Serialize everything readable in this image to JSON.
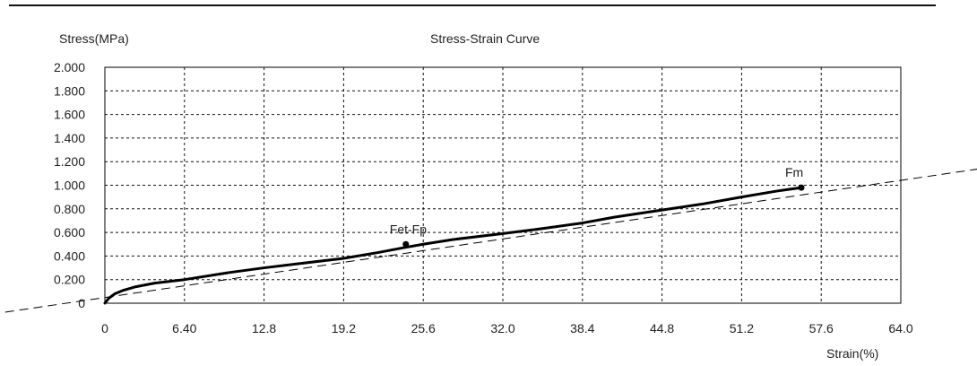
{
  "chart_data": {
    "type": "line",
    "title": "Stress-Strain Curve",
    "xlabel": "Strain(%)",
    "ylabel": "Stress(MPa)",
    "xlim": [
      0,
      64
    ],
    "ylim": [
      0,
      2
    ],
    "x_ticks": [
      "0",
      "6.40",
      "12.8",
      "19.2",
      "25.6",
      "32.0",
      "38.4",
      "44.8",
      "51.2",
      "57.6",
      "64.0"
    ],
    "y_ticks": [
      "0",
      "0.200",
      "0.400",
      "0.600",
      "0.800",
      "1.000",
      "1.200",
      "1.400",
      "1.600",
      "1.800",
      "2.000"
    ],
    "grid": true,
    "grid_style": "dashed",
    "series": [
      {
        "x": [
          0,
          0.3,
          0.8,
          1.5,
          2.5,
          4.0,
          6.4,
          10.0,
          12.8,
          16.0,
          19.2,
          22.0,
          24.0,
          25.6,
          28.0,
          32.0,
          35.0,
          38.4,
          41.0,
          44.8,
          48.0,
          51.2,
          54.0,
          56.0
        ],
        "y": [
          0.0,
          0.04,
          0.08,
          0.11,
          0.14,
          0.17,
          0.2,
          0.26,
          0.3,
          0.34,
          0.38,
          0.43,
          0.47,
          0.5,
          0.54,
          0.59,
          0.63,
          0.68,
          0.73,
          0.79,
          0.84,
          0.9,
          0.95,
          0.98
        ]
      }
    ],
    "reference_line": {
      "style": "dashed",
      "x": [
        -16.0,
        71.0
      ],
      "y": [
        -0.2,
        1.15
      ]
    },
    "annotations": [
      {
        "text": "Fet-Fp",
        "x": 24.2,
        "y": 0.5
      },
      {
        "text": "Fm",
        "x": 56.0,
        "y": 0.98
      }
    ],
    "markers": [
      {
        "x": 24.2,
        "y": 0.5
      },
      {
        "x": 56.0,
        "y": 0.98
      }
    ]
  },
  "colors": {
    "background": "#ffffff",
    "grid": "#111111",
    "curve": "#000000",
    "axis": "#000000"
  }
}
